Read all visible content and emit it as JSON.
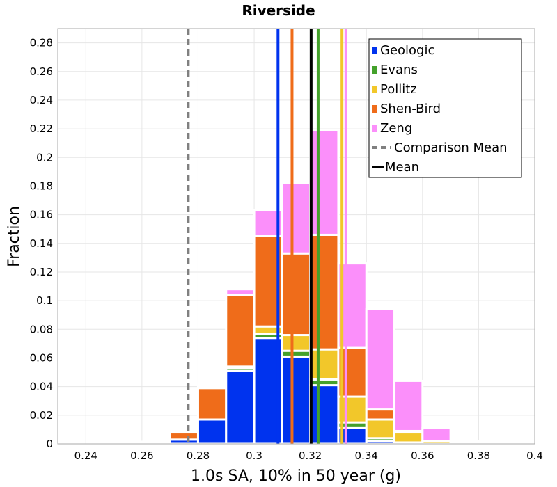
{
  "chart_data": {
    "type": "bar",
    "stacked": true,
    "title": "Riverside",
    "xlabel": "1.0s SA, 10% in 50 year (g)",
    "ylabel": "Fraction",
    "xlim": [
      0.23,
      0.4
    ],
    "ylim": [
      0,
      0.29
    ],
    "grid": true,
    "bin_width": 0.01,
    "x_ticks": [
      "0.24",
      "0.26",
      "0.28",
      "0.3",
      "0.32",
      "0.34",
      "0.36",
      "0.38",
      "0.4"
    ],
    "y_ticks": [
      "0",
      "0.02",
      "0.04",
      "0.06",
      "0.08",
      "0.1",
      "0.12",
      "0.14",
      "0.16",
      "0.18",
      "0.2",
      "0.22",
      "0.24",
      "0.26",
      "0.28"
    ],
    "bin_centers": [
      0.235,
      0.245,
      0.255,
      0.265,
      0.275,
      0.285,
      0.295,
      0.305,
      0.315,
      0.325,
      0.335,
      0.345,
      0.355,
      0.365,
      0.375,
      0.385,
      0.395
    ],
    "series": [
      {
        "name": "Geologic",
        "color": "#0033ee",
        "values": [
          0,
          0,
          0,
          0.0005,
          0.003,
          0.017,
          0.051,
          0.074,
          0.061,
          0.041,
          0.011,
          0.002,
          0.0005,
          0,
          0,
          0,
          0
        ]
      },
      {
        "name": "Evans",
        "color": "#44a12b",
        "values": [
          0,
          0,
          0,
          0,
          0,
          0,
          0.002,
          0.003,
          0.004,
          0.004,
          0.004,
          0.002,
          0.0005,
          0,
          0,
          0,
          0
        ]
      },
      {
        "name": "Pollitz",
        "color": "#f2c72a",
        "values": [
          0,
          0,
          0,
          0,
          0,
          0,
          0.001,
          0.005,
          0.011,
          0.021,
          0.018,
          0.013,
          0.007,
          0.002,
          0.0005,
          0,
          0
        ]
      },
      {
        "name": "Shen-Bird",
        "color": "#ef6c1a",
        "values": [
          0,
          0,
          0,
          0.0005,
          0.005,
          0.022,
          0.05,
          0.063,
          0.057,
          0.08,
          0.034,
          0.007,
          0.001,
          0,
          0,
          0,
          0
        ]
      },
      {
        "name": "Zeng",
        "color": "#fb8ffa",
        "values": [
          0,
          0,
          0.0005,
          0.0005,
          0.0005,
          0.001,
          0.004,
          0.018,
          0.049,
          0.073,
          0.059,
          0.07,
          0.035,
          0.009,
          0.0015,
          0.0005,
          0
        ]
      }
    ],
    "vertical_lines": [
      {
        "name": "Geologic mean",
        "x": 0.3085,
        "color": "#0033ee",
        "style": "solid"
      },
      {
        "name": "Shen-Bird mean",
        "x": 0.3135,
        "color": "#ef6c1a",
        "style": "solid"
      },
      {
        "name": "Evans mean",
        "x": 0.3228,
        "color": "#44a12b",
        "style": "solid"
      },
      {
        "name": "Pollitz mean",
        "x": 0.3313,
        "color": "#f2c72a",
        "style": "solid"
      },
      {
        "name": "Zeng mean",
        "x": 0.3327,
        "color": "#fb8ffa",
        "style": "solid"
      },
      {
        "name": "Mean",
        "x": 0.3203,
        "color": "#000000",
        "style": "solid"
      },
      {
        "name": "Comparison Mean",
        "x": 0.2765,
        "color": "#808080",
        "style": "dashed"
      }
    ],
    "legend": {
      "position": "top-right",
      "items": [
        {
          "label": "Geologic",
          "color": "#0033ee",
          "kind": "box"
        },
        {
          "label": "Evans",
          "color": "#44a12b",
          "kind": "box"
        },
        {
          "label": "Pollitz",
          "color": "#f2c72a",
          "kind": "box"
        },
        {
          "label": "Shen-Bird",
          "color": "#ef6c1a",
          "kind": "box"
        },
        {
          "label": "Zeng",
          "color": "#fb8ffa",
          "kind": "box"
        },
        {
          "label": "Comparison Mean",
          "color": "#808080",
          "kind": "dashed-line"
        },
        {
          "label": "Mean",
          "color": "#000000",
          "kind": "line"
        }
      ]
    }
  }
}
